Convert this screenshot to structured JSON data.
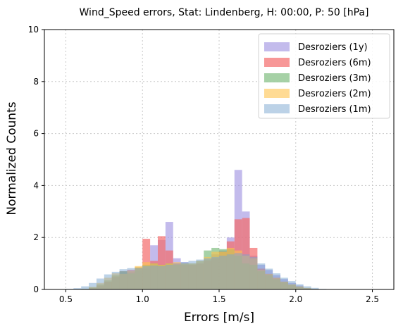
{
  "chart_data": {
    "type": "histogram",
    "title": "Wind_Speed errors, Stat: Lindenberg, H: 00:00, P: 50 [hPa]",
    "xlabel": "Errors [m/s]",
    "ylabel": "Normalized Counts",
    "xlim": [
      0.36,
      2.64
    ],
    "ylim": [
      0,
      10
    ],
    "xticks": [
      "0.5",
      "1.0",
      "1.5",
      "2.0",
      "2.5"
    ],
    "yticks": [
      "0",
      "2",
      "4",
      "6",
      "8",
      "10"
    ],
    "grid": true,
    "legend_position": "top-right",
    "bin_start": 0.5,
    "bin_width": 0.05,
    "series": [
      {
        "name": "Desroziers (1y)",
        "color": "#9b8ee0",
        "opacity": 0.6,
        "values": [
          0,
          0,
          0,
          0.05,
          0.12,
          0.28,
          0.45,
          0.6,
          0.68,
          0.72,
          0.8,
          1.7,
          1.9,
          2.6,
          1.2,
          1.05,
          0.95,
          1.0,
          1.15,
          1.35,
          1.5,
          2.0,
          4.6,
          3.0,
          1.3,
          0.95,
          0.75,
          0.55,
          0.4,
          0.25,
          0.15,
          0.05,
          0.02,
          0,
          0
        ]
      },
      {
        "name": "Desroziers (6m)",
        "color": "#f36b6b",
        "opacity": 0.7,
        "values": [
          0,
          0,
          0,
          0.05,
          0.15,
          0.3,
          0.5,
          0.7,
          0.75,
          0.85,
          1.95,
          1.1,
          2.05,
          1.5,
          1.0,
          0.95,
          0.95,
          1.0,
          1.1,
          1.2,
          1.45,
          1.85,
          2.7,
          2.75,
          1.6,
          0.8,
          0.6,
          0.45,
          0.3,
          0.18,
          0.1,
          0.04,
          0.02,
          0,
          0
        ]
      },
      {
        "name": "Desroziers (3m)",
        "color": "#6ab26a",
        "opacity": 0.6,
        "values": [
          0,
          0,
          0.02,
          0.08,
          0.2,
          0.35,
          0.55,
          0.7,
          0.62,
          0.85,
          0.95,
          1.0,
          0.95,
          1.0,
          0.95,
          1.0,
          1.0,
          1.1,
          1.5,
          1.6,
          1.55,
          1.55,
          1.3,
          1.0,
          0.95,
          0.7,
          0.55,
          0.4,
          0.28,
          0.18,
          0.1,
          0.05,
          0.02,
          0,
          0
        ]
      },
      {
        "name": "Desroziers (2m)",
        "color": "#ffc34d",
        "opacity": 0.6,
        "values": [
          0,
          0,
          0.02,
          0.1,
          0.25,
          0.45,
          0.62,
          0.6,
          0.7,
          0.9,
          1.05,
          1.0,
          0.95,
          1.0,
          1.05,
          1.0,
          1.0,
          1.1,
          1.25,
          1.45,
          1.45,
          1.6,
          1.5,
          1.3,
          1.2,
          0.75,
          0.6,
          0.45,
          0.3,
          0.2,
          0.12,
          0.06,
          0.02,
          0,
          0
        ]
      },
      {
        "name": "Desroziers (1m)",
        "color": "#7aa6cf",
        "opacity": 0.5,
        "values": [
          0.02,
          0.05,
          0.12,
          0.25,
          0.42,
          0.58,
          0.68,
          0.78,
          0.82,
          0.82,
          0.9,
          0.92,
          0.9,
          0.95,
          1.0,
          1.05,
          1.1,
          1.15,
          1.2,
          1.25,
          1.3,
          1.35,
          1.4,
          1.35,
          1.25,
          1.0,
          0.8,
          0.62,
          0.45,
          0.32,
          0.2,
          0.12,
          0.06,
          0.02,
          0
        ]
      }
    ]
  }
}
